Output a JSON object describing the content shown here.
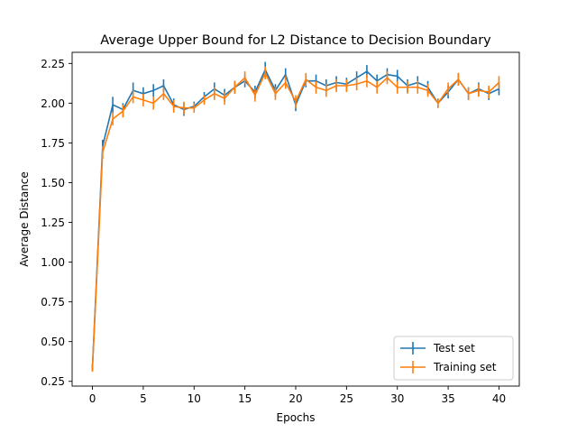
{
  "chart_data": {
    "type": "line",
    "title": "Average Upper Bound for L2 Distance to Decision Boundary",
    "xlabel": "Epochs",
    "ylabel": "Average Distance",
    "xlim": [
      -2,
      42
    ],
    "ylim": [
      0.22,
      2.32
    ],
    "xticks": [
      0,
      5,
      10,
      15,
      20,
      25,
      30,
      35,
      40
    ],
    "yticks": [
      0.25,
      0.5,
      0.75,
      1.0,
      1.25,
      1.5,
      1.75,
      2.0,
      2.25
    ],
    "grid": false,
    "legend_position": "lower-right",
    "x": [
      0,
      1,
      2,
      3,
      4,
      5,
      6,
      7,
      8,
      9,
      10,
      11,
      12,
      13,
      14,
      15,
      16,
      17,
      18,
      19,
      20,
      21,
      22,
      23,
      24,
      25,
      26,
      27,
      28,
      29,
      30,
      31,
      32,
      33,
      34,
      35,
      36,
      37,
      38,
      39,
      40
    ],
    "series": [
      {
        "name": "Test set",
        "color": "#1f77b4",
        "values": [
          0.34,
          1.73,
          1.99,
          1.96,
          2.08,
          2.06,
          2.08,
          2.11,
          1.99,
          1.96,
          1.98,
          2.04,
          2.09,
          2.05,
          2.1,
          2.14,
          2.07,
          2.21,
          2.08,
          2.18,
          1.99,
          2.14,
          2.14,
          2.11,
          2.13,
          2.12,
          2.16,
          2.2,
          2.14,
          2.18,
          2.17,
          2.11,
          2.13,
          2.1,
          2.0,
          2.07,
          2.15,
          2.06,
          2.09,
          2.06,
          2.09
        ],
        "errors": [
          0.02,
          0.04,
          0.05,
          0.04,
          0.05,
          0.04,
          0.04,
          0.04,
          0.04,
          0.04,
          0.03,
          0.03,
          0.04,
          0.04,
          0.04,
          0.04,
          0.04,
          0.05,
          0.04,
          0.04,
          0.04,
          0.04,
          0.04,
          0.04,
          0.04,
          0.04,
          0.04,
          0.04,
          0.04,
          0.04,
          0.04,
          0.04,
          0.04,
          0.04,
          0.03,
          0.04,
          0.04,
          0.04,
          0.04,
          0.04,
          0.04
        ]
      },
      {
        "name": "Training set",
        "color": "#ff7f0e",
        "values": [
          0.33,
          1.69,
          1.9,
          1.95,
          2.04,
          2.02,
          2.0,
          2.06,
          1.98,
          1.97,
          1.97,
          2.02,
          2.06,
          2.03,
          2.1,
          2.16,
          2.05,
          2.19,
          2.06,
          2.13,
          2.01,
          2.15,
          2.1,
          2.08,
          2.11,
          2.11,
          2.12,
          2.14,
          2.1,
          2.16,
          2.1,
          2.1,
          2.1,
          2.08,
          2.0,
          2.09,
          2.15,
          2.06,
          2.08,
          2.07,
          2.13
        ],
        "errors": [
          0.02,
          0.04,
          0.04,
          0.04,
          0.04,
          0.04,
          0.04,
          0.04,
          0.04,
          0.04,
          0.03,
          0.03,
          0.04,
          0.04,
          0.04,
          0.04,
          0.04,
          0.04,
          0.04,
          0.04,
          0.04,
          0.04,
          0.04,
          0.04,
          0.04,
          0.04,
          0.04,
          0.04,
          0.04,
          0.04,
          0.04,
          0.04,
          0.04,
          0.04,
          0.03,
          0.04,
          0.04,
          0.04,
          0.04,
          0.04,
          0.04
        ]
      }
    ]
  }
}
